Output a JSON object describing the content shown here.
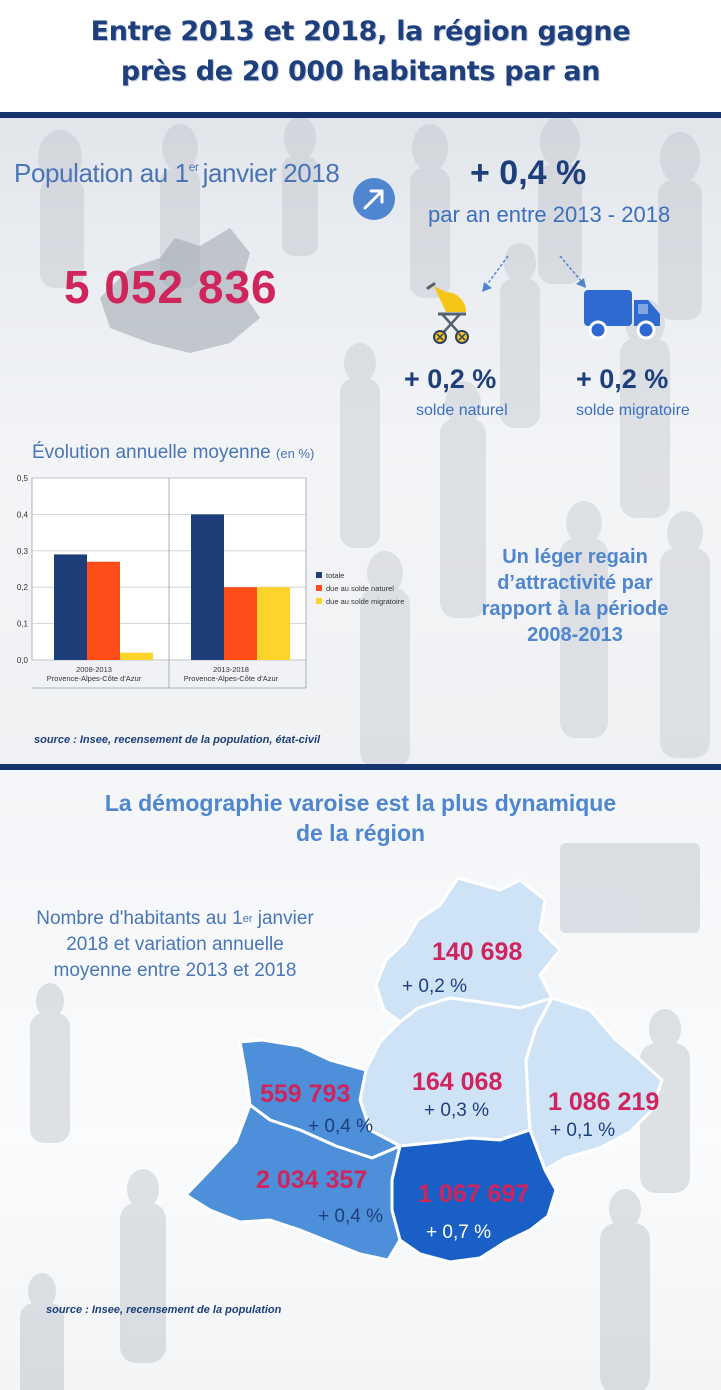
{
  "header": {
    "line1": "Entre 2013 et 2018, la région gagne",
    "line2": "près de 20 000 habitants par an"
  },
  "population": {
    "title_prefix": "Population au 1",
    "title_sup": "er",
    "title_suffix": "janvier 2018",
    "value": "5 052 836",
    "growth": "+ 0,4 %",
    "growth_period": "par an entre 2013 - 2018"
  },
  "soldes": [
    {
      "value": "+ 0,2 %",
      "label": "solde naturel",
      "icon": "stroller-icon"
    },
    {
      "value": "+ 0,2 %",
      "label": "solde migratoire",
      "icon": "truck-icon"
    }
  ],
  "evolution": {
    "title": "Évolution annuelle moyenne",
    "unit": "(en %)"
  },
  "regain": {
    "line1": "Un léger regain",
    "line2": "d’attractivité par",
    "line3": "rapport à la période",
    "line4": "2008-2013"
  },
  "source1": "source : Insee, recensement de la population, état-civil",
  "section2": {
    "title_line1": "La démographie varoise est la plus dynamique",
    "title_line2": "de la région",
    "caption_prefix": "Nombre d'habitants au 1",
    "caption_sup": "er",
    "caption_line1_suffix": "janvier",
    "caption_line2": "2018 et variation annuelle",
    "caption_line3": "moyenne entre 2013 et 2018",
    "source": "source : Insee, recensement de la population"
  },
  "departments": [
    {
      "population": "140 698",
      "variation": "+ 0,2 %",
      "color": "#cfe3f7"
    },
    {
      "population": "164 068",
      "variation": "+ 0,3 %",
      "color": "#cfe3f7"
    },
    {
      "population": "1 086 219",
      "variation": "+ 0,1 %",
      "color": "#cfe3f7"
    },
    {
      "population": "559 793",
      "variation": "+ 0,4 %",
      "color": "#4d8fd8"
    },
    {
      "population": "2 034 357",
      "variation": "+ 0,4 %",
      "color": "#4d8fd8"
    },
    {
      "population": "1 067 697",
      "variation": "+ 0,7 %",
      "color": "#1a5fc5"
    }
  ],
  "colors": {
    "navy": "#1e3f7c",
    "accent_pink": "#d0245c",
    "blue": "#4f86cf"
  },
  "chart_data": {
    "type": "bar",
    "categories": [
      "2008-2013\nProvence-Alpes-Côte d'Azur",
      "2013-2018\nProvence-Alpes-Côte d'Azur"
    ],
    "category_lines": [
      [
        "2008-2013",
        "Provence-Alpes-Côte d'Azur"
      ],
      [
        "2013-2018",
        "Provence-Alpes-Côte d'Azur"
      ]
    ],
    "series": [
      {
        "name": "totale",
        "values": [
          0.29,
          0.4
        ],
        "color": "#1c3f7a"
      },
      {
        "name": "due au solde naturel",
        "values": [
          0.27,
          0.2
        ],
        "color": "#ff4d1a"
      },
      {
        "name": "due au solde migratoire",
        "values": [
          0.02,
          0.2
        ],
        "color": "#ffd42a"
      }
    ],
    "ylim": [
      0,
      0.5
    ],
    "yticks": [
      "0,0",
      "0,1",
      "0,2",
      "0,3",
      "0,4",
      "0,5"
    ],
    "grid": true,
    "legend": "right"
  }
}
